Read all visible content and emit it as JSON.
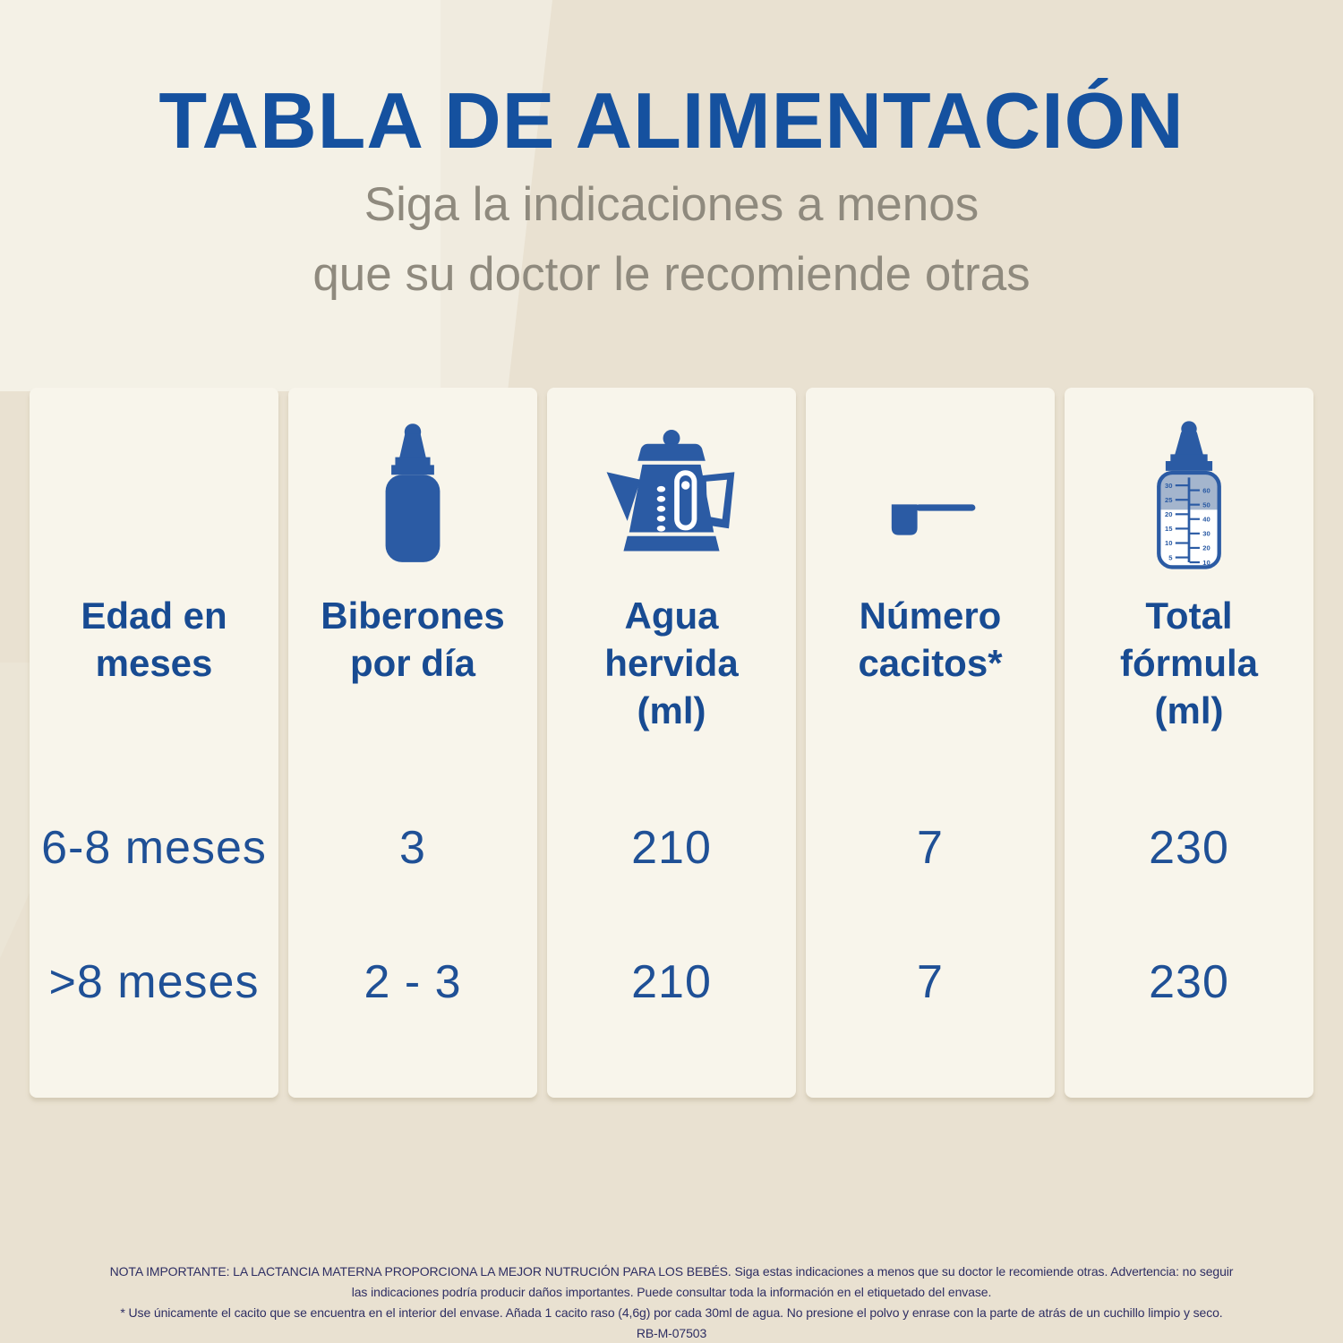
{
  "page": {
    "title": "TABLA DE ALIMENTACIÓN",
    "subtitle_line1": "Siga la indicaciones a menos",
    "subtitle_line2": "que su doctor le recomiende otras"
  },
  "colors": {
    "background_beige": "#e9e1d1",
    "card_cream": "#f8f5eb",
    "title_blue": "#15519f",
    "header_blue": "#184b92",
    "icon_blue": "#2b5ba4",
    "data_blue": "#1f5096",
    "subtitle_gray": "#8f8a7e",
    "footer_navy": "#2e2e63",
    "milk_fill": "#a4b5cd"
  },
  "table": {
    "columns": [
      {
        "icon": "none",
        "header": "Edad en meses",
        "header_lines": [
          "Edad en",
          "meses"
        ]
      },
      {
        "icon": "baby-bottle",
        "header": "Biberones por día",
        "header_lines": [
          "Biberones",
          "por día"
        ]
      },
      {
        "icon": "kettle",
        "header": "Agua hervida (ml)",
        "header_lines": [
          "Agua",
          "hervida",
          "(ml)"
        ]
      },
      {
        "icon": "scoop",
        "header": "Número cacitos*",
        "header_lines": [
          "Número",
          "cacitos*"
        ]
      },
      {
        "icon": "measuring-bottle",
        "header": "Total fórmula (ml)",
        "header_lines": [
          "Total",
          "fórmula",
          "(ml)"
        ]
      }
    ],
    "rows": [
      {
        "edad": "6-8 meses",
        "biberones": "3",
        "agua": "210",
        "cacitos": "7",
        "total": "230"
      },
      {
        "edad": ">8 meses",
        "biberones": "2 - 3",
        "agua": "210",
        "cacitos": "7",
        "total": "230"
      }
    ]
  },
  "bottle_scale": {
    "left_labels": [
      "30",
      "25",
      "20",
      "15",
      "10",
      "5"
    ],
    "right_labels": [
      "60",
      "50",
      "40",
      "30",
      "20",
      "10"
    ]
  },
  "footer": {
    "line1": "NOTA IMPORTANTE: LA LACTANCIA MATERNA PROPORCIONA LA MEJOR NUTRUCIÓN PARA LOS BEBÉS. Siga estas indicaciones a menos que su doctor le recomiende otras. Advertencia: no seguir",
    "line2": "las indicaciones podría producir daños importantes. Puede consultar toda la información en el etiquetado del envase.",
    "line3": "* Use únicamente el cacito que se encuentra en el interior del envase. Añada 1 cacito raso (4,6g) por cada 30ml de agua. No presione el polvo y enrase con la parte de atrás de un cuchillo limpio y seco.",
    "code": "RB-M-07503"
  },
  "chart_data": {
    "type": "table",
    "title": "TABLA DE ALIMENTACIÓN",
    "subtitle": "Siga la indicaciones a menos que su doctor le recomiende otras",
    "columns": [
      "Edad en meses",
      "Biberones por día",
      "Agua hervida (ml)",
      "Número cacitos*",
      "Total fórmula (ml)"
    ],
    "rows": [
      [
        "6-8 meses",
        "3",
        "210",
        "7",
        "230"
      ],
      [
        ">8 meses",
        "2 - 3",
        "210",
        "7",
        "230"
      ]
    ]
  }
}
